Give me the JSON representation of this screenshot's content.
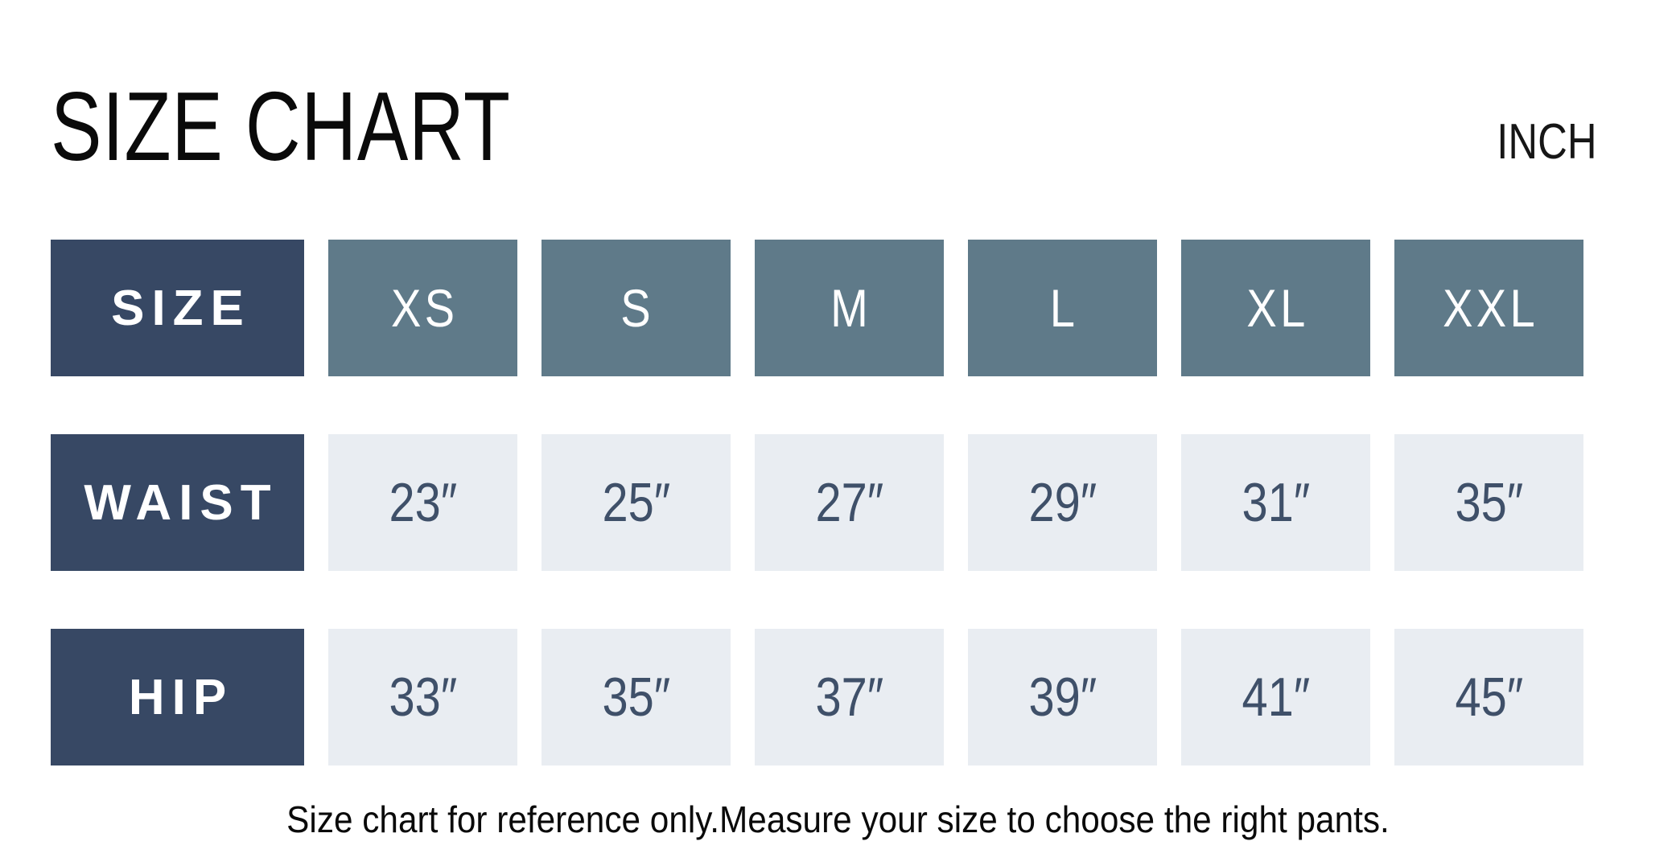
{
  "header": {
    "title": "SIZE CHART",
    "unit": "INCH"
  },
  "table": {
    "corner": "SIZE",
    "sizes": [
      "XS",
      "S",
      "M",
      "L",
      "XL",
      "XXL"
    ],
    "rows": [
      {
        "label": "WAIST",
        "values": [
          "23″",
          "25″",
          "27″",
          "29″",
          "31″",
          "35″"
        ]
      },
      {
        "label": "HIP",
        "values": [
          "33″",
          "35″",
          "37″",
          "39″",
          "41″",
          "45″"
        ]
      }
    ]
  },
  "footnote": "Size chart for reference only.Measure your size to choose the right pants.",
  "chart_data": {
    "type": "table",
    "title": "SIZE CHART",
    "unit": "INCH",
    "columns": [
      "SIZE",
      "XS",
      "S",
      "M",
      "L",
      "XL",
      "XXL"
    ],
    "rows": [
      [
        "WAIST",
        "23″",
        "25″",
        "27″",
        "29″",
        "31″",
        "35″"
      ],
      [
        "HIP",
        "33″",
        "35″",
        "37″",
        "39″",
        "41″",
        "45″"
      ]
    ],
    "note": "Size chart for reference only.Measure your size to choose the right pants."
  },
  "colors": {
    "label_bg": "#374864",
    "size_bg": "#5f7a89",
    "value_bg": "#e9edf2",
    "value_text": "#3f5069",
    "header_text": "#ffffff",
    "page_bg": "#ffffff",
    "body_text": "#0a0a0a"
  }
}
